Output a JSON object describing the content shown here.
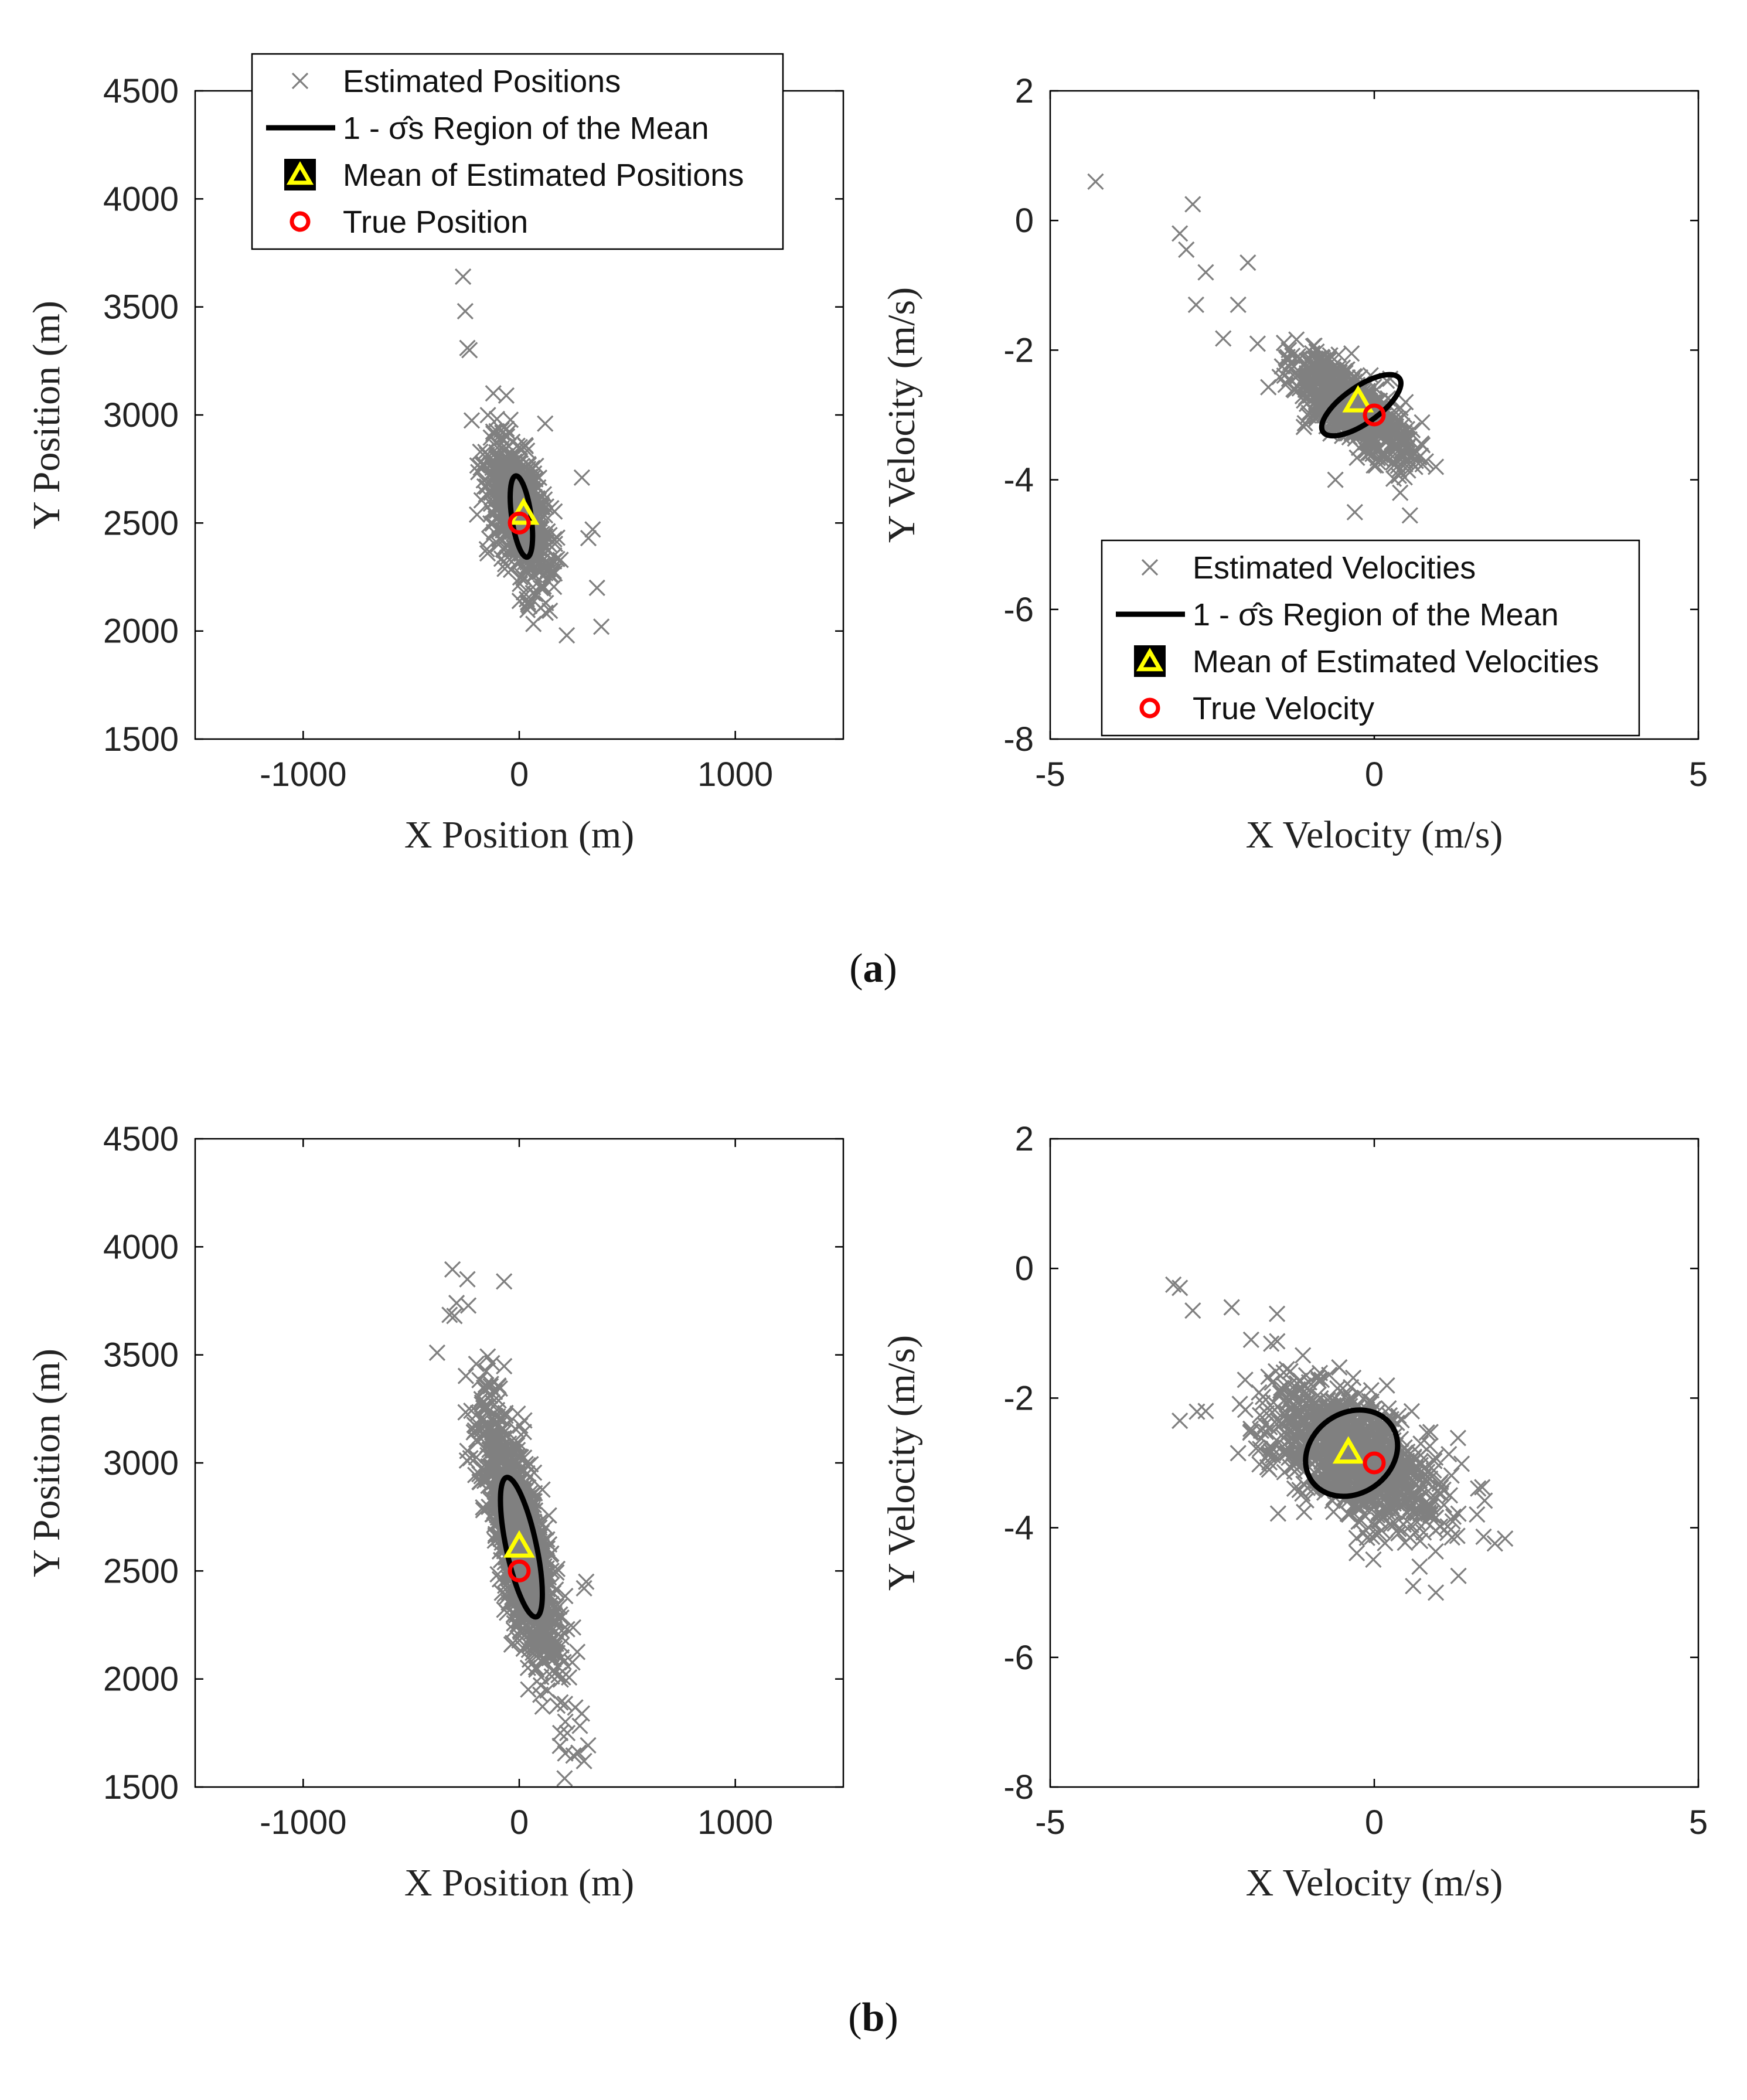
{
  "figure": {
    "panel_labels": {
      "a_open": "(",
      "a": "a",
      "a_close": ")",
      "b_open": "(",
      "b": "b",
      "b_close": ")"
    }
  },
  "colors": {
    "scatter": "#808080",
    "ellipse": "#000000",
    "mean_marker": "#ffff00",
    "true_marker": "#ff0000"
  },
  "chart_data": [
    {
      "id": "a-position",
      "type": "scatter",
      "row": "a",
      "xlabel": "X Position (m)",
      "ylabel": "Y Position (m)",
      "xlim": [
        -1500,
        1500
      ],
      "ylim": [
        1500,
        4500
      ],
      "xticks": [
        -1000,
        0,
        1000
      ],
      "xtick_labels": [
        "-1000",
        "0",
        "1000"
      ],
      "yticks": [
        1500,
        2000,
        2500,
        3000,
        3500,
        4000,
        4500
      ],
      "ytick_labels": [
        "1500",
        "2000",
        "2500",
        "3000",
        "3500",
        "4000",
        "4500"
      ],
      "scatter_center": [
        0,
        2550
      ],
      "scatter_std": [
        75,
        170
      ],
      "scatter_corr": -0.6,
      "n_points": 700,
      "outliers": [
        [
          -260,
          3640
        ],
        [
          -250,
          3480
        ],
        [
          -240,
          3310
        ],
        [
          -230,
          3300
        ],
        [
          -120,
          3100
        ],
        [
          -60,
          3090
        ],
        [
          120,
          2960
        ],
        [
          290,
          2710
        ],
        [
          340,
          2470
        ],
        [
          320,
          2430
        ],
        [
          360,
          2200
        ],
        [
          380,
          2020
        ],
        [
          220,
          1980
        ]
      ],
      "ellipse": {
        "center": [
          10,
          2530
        ],
        "semi_axes": [
          45,
          190
        ],
        "angle_deg": -8
      },
      "mean": [
        20,
        2540
      ],
      "true": [
        0,
        2500
      ],
      "legend": {
        "position": "top-left",
        "entries": [
          "Estimated Positions",
          "1 - σ̂s Region of the Mean",
          "Mean of Estimated Positions",
          "True Position"
        ]
      }
    },
    {
      "id": "a-velocity",
      "type": "scatter",
      "row": "a",
      "xlabel": "X Velocity (m/s)",
      "ylabel": "Y Velocity (m/s)",
      "xlim": [
        -5,
        5
      ],
      "ylim": [
        -8,
        2
      ],
      "xticks": [
        -5,
        0,
        5
      ],
      "xtick_labels": [
        "-5",
        "0",
        "5"
      ],
      "yticks": [
        -8,
        -6,
        -4,
        -2,
        0,
        2
      ],
      "ytick_labels": [
        "-8",
        "-6",
        "-4",
        "-2",
        "0",
        "2"
      ],
      "scatter_center": [
        -0.35,
        -2.9
      ],
      "scatter_std": [
        0.45,
        0.4
      ],
      "scatter_corr": -0.75,
      "n_points": 700,
      "outliers": [
        [
          -4.3,
          0.6
        ],
        [
          -2.8,
          0.25
        ],
        [
          -3.0,
          -0.2
        ],
        [
          -2.9,
          -0.45
        ],
        [
          -2.6,
          -0.8
        ],
        [
          -2.75,
          -1.3
        ],
        [
          -2.1,
          -1.3
        ],
        [
          -1.95,
          -0.65
        ],
        [
          -1.8,
          -1.9
        ],
        [
          -0.6,
          -4.0
        ],
        [
          -0.3,
          -4.5
        ],
        [
          0.55,
          -4.55
        ],
        [
          0.4,
          -4.2
        ],
        [
          0.95,
          -3.8
        ]
      ],
      "ellipse": {
        "center": [
          -0.2,
          -2.85
        ],
        "semi_axes": [
          0.72,
          0.28
        ],
        "angle_deg": -35
      },
      "mean": [
        -0.25,
        -2.8
      ],
      "true": [
        0,
        -3
      ],
      "legend": {
        "position": "bottom-right",
        "entries": [
          "Estimated Velocities",
          "1 - σ̂s Region of the Mean",
          "Mean of Estimated Velocities",
          "True Velocity"
        ]
      }
    },
    {
      "id": "b-position",
      "type": "scatter",
      "row": "b",
      "xlabel": "X Position (m)",
      "ylabel": "Y Position (m)",
      "xlim": [
        -1500,
        1500
      ],
      "ylim": [
        1500,
        4500
      ],
      "xticks": [
        -1000,
        0,
        1000
      ],
      "xtick_labels": [
        "-1000",
        "0",
        "1000"
      ],
      "yticks": [
        1500,
        2000,
        2500,
        3000,
        3500,
        4000,
        4500
      ],
      "ytick_labels": [
        "1500",
        "2000",
        "2500",
        "3000",
        "3500",
        "4000",
        "4500"
      ],
      "scatter_center": [
        0,
        2650
      ],
      "scatter_std": [
        95,
        340
      ],
      "scatter_corr": -0.8,
      "n_points": 1100,
      "outliers": [
        [
          -240,
          3850
        ],
        [
          -70,
          3840
        ],
        [
          -290,
          3740
        ],
        [
          -380,
          3510
        ],
        [
          -300,
          3680
        ],
        [
          310,
          2450
        ],
        [
          300,
          2420
        ],
        [
          210,
          1540
        ],
        [
          300,
          1620
        ],
        [
          290,
          1840
        ],
        [
          190,
          1750
        ]
      ],
      "ellipse": {
        "center": [
          10,
          2610
        ],
        "semi_axes": [
          70,
          330
        ],
        "angle_deg": -12
      },
      "mean": [
        0,
        2610
      ],
      "true": [
        0,
        2500
      ]
    },
    {
      "id": "b-velocity",
      "type": "scatter",
      "row": "b",
      "xlabel": "X Velocity (m/s)",
      "ylabel": "Y Velocity (m/s)",
      "xlim": [
        -5,
        5
      ],
      "ylim": [
        -8,
        2
      ],
      "xticks": [
        -5,
        0,
        5
      ],
      "xtick_labels": [
        "-5",
        "0",
        "5"
      ],
      "yticks": [
        -8,
        -6,
        -4,
        -2,
        0,
        2
      ],
      "ytick_labels": [
        "-8",
        "-6",
        "-4",
        "-2",
        "0",
        "2"
      ],
      "scatter_center": [
        -0.3,
        -2.9
      ],
      "scatter_std": [
        0.65,
        0.55
      ],
      "scatter_corr": -0.55,
      "n_points": 1100,
      "outliers": [
        [
          -3.1,
          -0.25
        ],
        [
          -3.0,
          -0.3
        ],
        [
          -2.8,
          -0.65
        ],
        [
          -3.0,
          -2.35
        ],
        [
          -2.6,
          -2.2
        ],
        [
          -2.1,
          -2.85
        ],
        [
          -2.2,
          -0.6
        ],
        [
          -1.5,
          -0.7
        ],
        [
          -1.9,
          -1.1
        ],
        [
          0.7,
          -4.6
        ],
        [
          0.95,
          -5.0
        ],
        [
          0.6,
          -4.9
        ],
        [
          1.2,
          -4.15
        ]
      ],
      "ellipse": {
        "center": [
          -0.35,
          -2.85
        ],
        "semi_axes": [
          0.75,
          0.62
        ],
        "angle_deg": -35
      },
      "mean": [
        -0.4,
        -2.85
      ],
      "true": [
        0,
        -3
      ]
    }
  ]
}
